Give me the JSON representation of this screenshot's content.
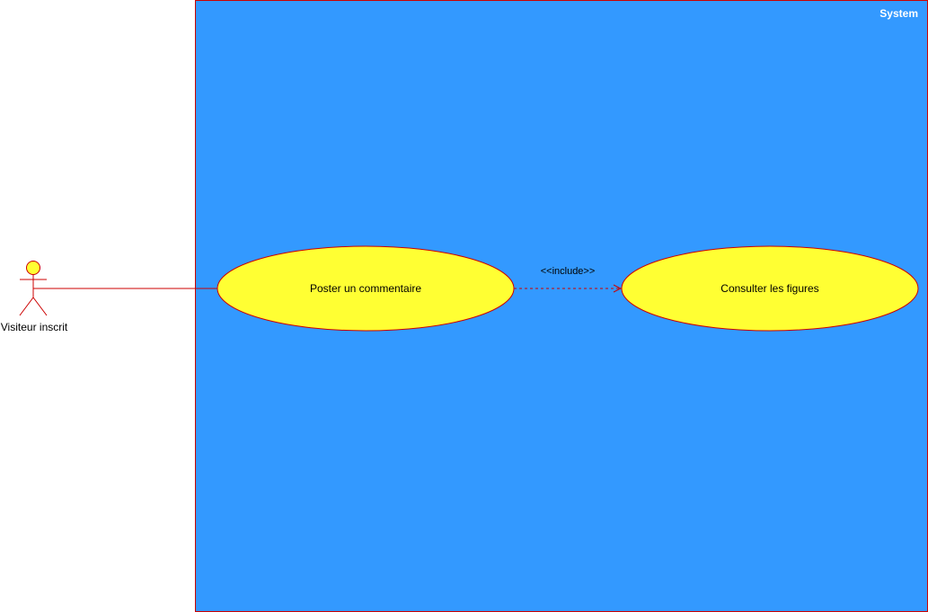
{
  "system": {
    "title": "System"
  },
  "actor": {
    "name": "Visiteur inscrit"
  },
  "use_cases": [
    {
      "label": "Poster un commentaire"
    },
    {
      "label": "Consulter les figures"
    }
  ],
  "relationship": {
    "label": "<<include>>"
  },
  "colors": {
    "system_fill": "#3399FF",
    "system_stroke": "#CC0000",
    "use_case_fill": "#FFFF33",
    "use_case_stroke": "#CC0000",
    "actor_fill": "#FFFF33",
    "actor_stroke": "#CC0000",
    "line": "#CC0000"
  }
}
